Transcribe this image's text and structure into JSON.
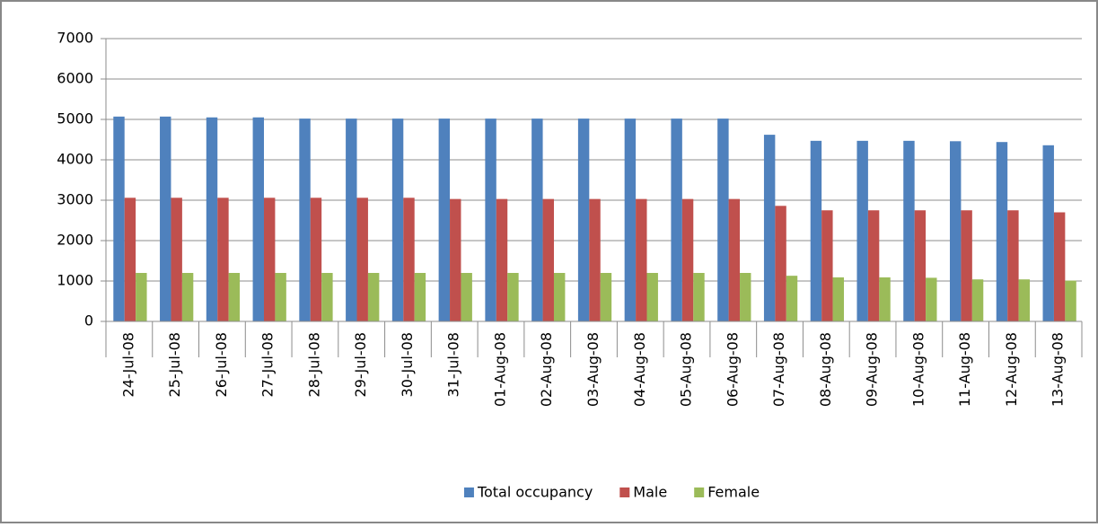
{
  "chart_data": {
    "type": "bar",
    "categories": [
      "24-Jul-08",
      "25-Jul-08",
      "26-Jul-08",
      "27-Jul-08",
      "28-Jul-08",
      "29-Jul-08",
      "30-Jul-08",
      "31-Jul-08",
      "01-Aug-08",
      "02-Aug-08",
      "03-Aug-08",
      "04-Aug-08",
      "05-Aug-08",
      "06-Aug-08",
      "07-Aug-08",
      "08-Aug-08",
      "09-Aug-08",
      "10-Aug-08",
      "11-Aug-08",
      "12-Aug-08",
      "13-Aug-08"
    ],
    "series": [
      {
        "name": "Total occupancy",
        "color": "#4f81bd",
        "values": [
          5070,
          5070,
          5050,
          5050,
          5020,
          5020,
          5020,
          5020,
          5020,
          5020,
          5020,
          5020,
          5020,
          5020,
          4620,
          4470,
          4470,
          4470,
          4460,
          4440,
          4360
        ]
      },
      {
        "name": "Male",
        "color": "#c0504d",
        "values": [
          3060,
          3060,
          3060,
          3060,
          3060,
          3060,
          3060,
          3030,
          3030,
          3030,
          3030,
          3030,
          3030,
          3030,
          2860,
          2750,
          2750,
          2750,
          2750,
          2750,
          2700
        ]
      },
      {
        "name": "Female",
        "color": "#9bbb59",
        "values": [
          1200,
          1200,
          1200,
          1200,
          1200,
          1200,
          1200,
          1200,
          1200,
          1200,
          1200,
          1200,
          1200,
          1200,
          1130,
          1090,
          1090,
          1080,
          1040,
          1040,
          1010
        ]
      }
    ],
    "ylim": [
      0,
      7000
    ],
    "yticks": [
      0,
      1000,
      2000,
      3000,
      4000,
      5000,
      6000,
      7000
    ],
    "grid": true,
    "legend": "bottom"
  }
}
